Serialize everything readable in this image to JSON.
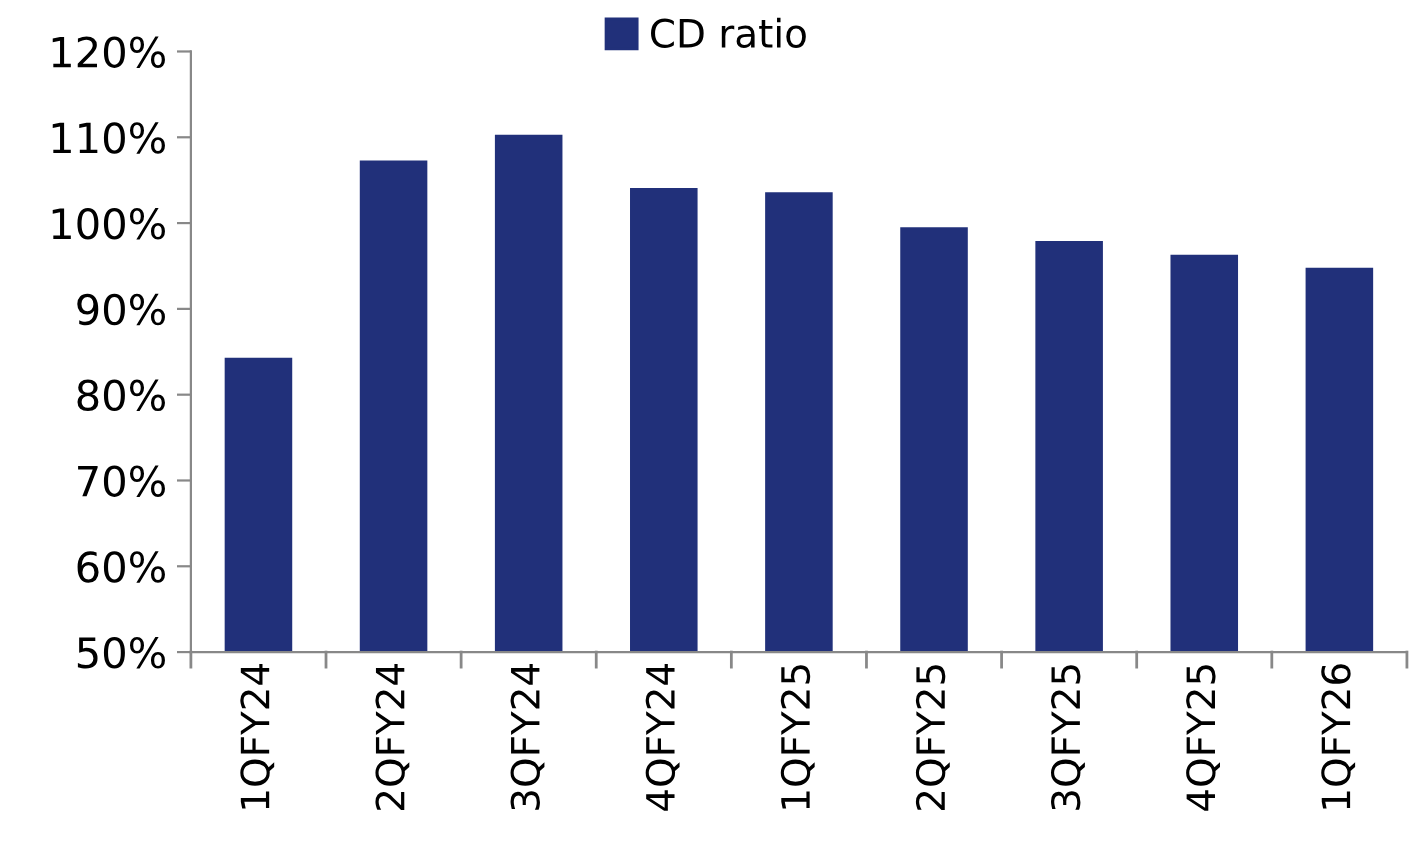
{
  "chart_data": {
    "type": "bar",
    "categories": [
      "1QFY24",
      "2QFY24",
      "3QFY24",
      "4QFY24",
      "1QFY25",
      "2QFY25",
      "3QFY25",
      "4QFY25",
      "1QFY26"
    ],
    "series": [
      {
        "name": "CD ratio",
        "color": "#21307a",
        "values": [
          84.3,
          107.3,
          110.3,
          104.1,
          103.6,
          99.5,
          97.9,
          96.3,
          94.8
        ]
      }
    ],
    "ylim": [
      50,
      120
    ],
    "yticks": [
      {
        "value": 50,
        "label": "50%"
      },
      {
        "value": 60,
        "label": "60%"
      },
      {
        "value": 70,
        "label": "70%"
      },
      {
        "value": 80,
        "label": "80%"
      },
      {
        "value": 90,
        "label": "90%"
      },
      {
        "value": 100,
        "label": "100%"
      },
      {
        "value": 110,
        "label": "110%"
      },
      {
        "value": 120,
        "label": "120%"
      }
    ],
    "grid": false,
    "legend": "top"
  }
}
